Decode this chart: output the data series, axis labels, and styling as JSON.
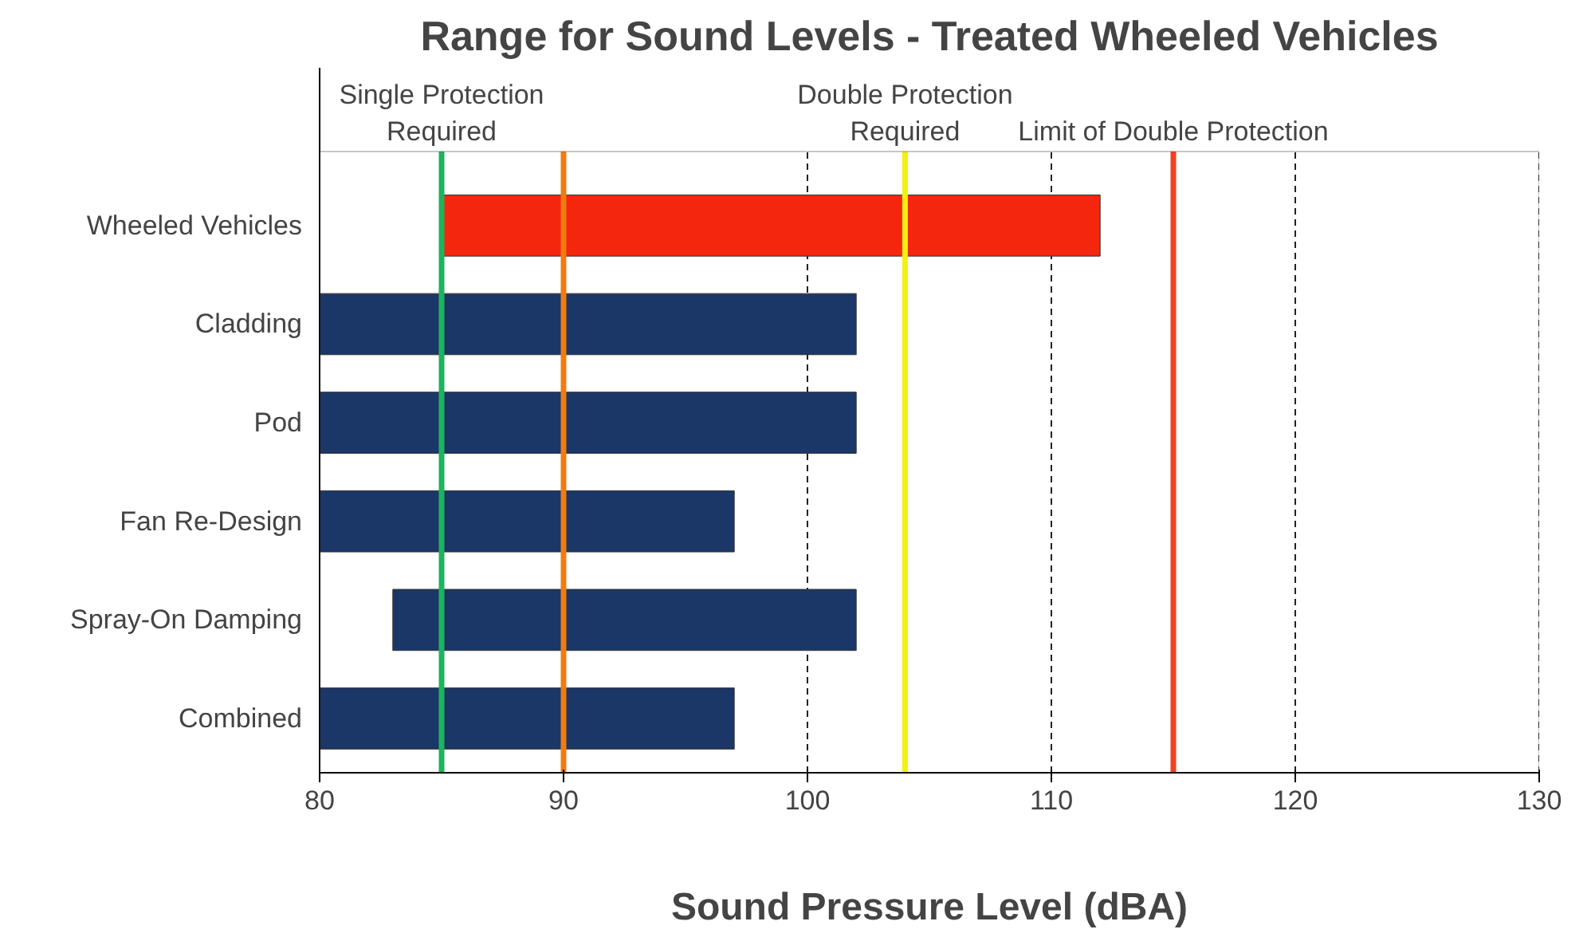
{
  "chart_data": {
    "type": "bar",
    "orientation": "horizontal",
    "title": "Range for Sound Levels - Treated Wheeled Vehicles",
    "xlabel": "Sound Pressure Level (dBA)",
    "categories": [
      "Wheeled Vehicles",
      "Cladding",
      "Pod",
      "Fan Re-Design",
      "Spray-On Damping",
      "Combined"
    ],
    "base": [
      85,
      80,
      80,
      80,
      83,
      80
    ],
    "values": [
      27,
      22,
      22,
      17,
      19,
      17
    ],
    "colors": [
      "#f5260e",
      "#1b3768",
      "#1b3768",
      "#1b3768",
      "#1b3768",
      "#1b3768"
    ],
    "xlim": [
      80,
      130
    ],
    "xticks": [
      80,
      90,
      100,
      110,
      120,
      130
    ],
    "grid": "x",
    "ref_lines": [
      {
        "axis": "x",
        "value": 85,
        "label": "Single Protection\nRequired",
        "color": "#1db45c"
      },
      {
        "axis": "x",
        "value": 104,
        "label": "Double Protection\nRequired",
        "color": "#f5ef13"
      },
      {
        "axis": "x",
        "value": 115,
        "label": "Limit of Double Protection",
        "color": "#f2411f"
      },
      {
        "axis": "x",
        "value": 90,
        "label": null,
        "color": "#f07c10"
      }
    ]
  }
}
